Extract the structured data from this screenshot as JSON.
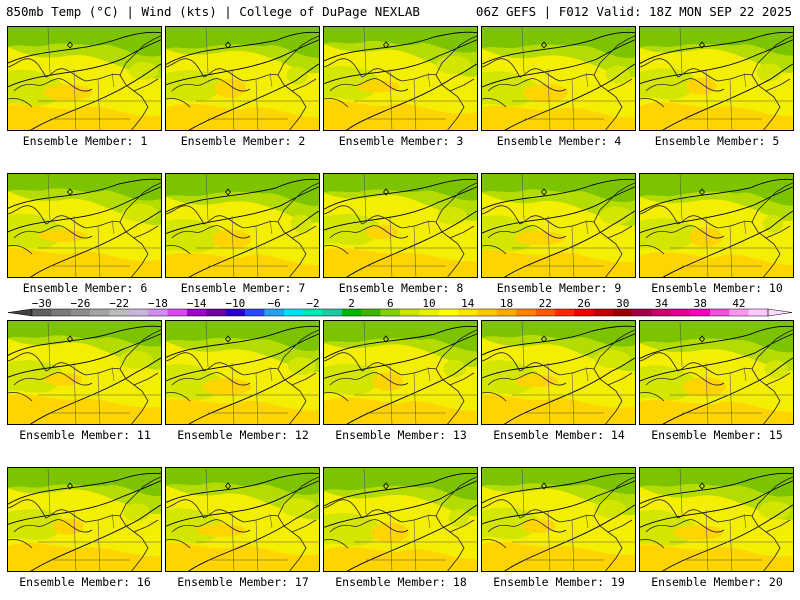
{
  "header": {
    "left": "850mb Temp (°C) | Wind (kts) | College of DuPage NEXLAB",
    "right": "06Z GEFS | F012 Valid: 18Z MON SEP 22 2025"
  },
  "members": [
    {
      "label": "Ensemble Member: 1"
    },
    {
      "label": "Ensemble Member: 2"
    },
    {
      "label": "Ensemble Member: 3"
    },
    {
      "label": "Ensemble Member: 4"
    },
    {
      "label": "Ensemble Member: 5"
    },
    {
      "label": "Ensemble Member: 6"
    },
    {
      "label": "Ensemble Member: 7"
    },
    {
      "label": "Ensemble Member: 8"
    },
    {
      "label": "Ensemble Member: 9"
    },
    {
      "label": "Ensemble Member: 10"
    },
    {
      "label": "Ensemble Member: 11"
    },
    {
      "label": "Ensemble Member: 12"
    },
    {
      "label": "Ensemble Member: 13"
    },
    {
      "label": "Ensemble Member: 14"
    },
    {
      "label": "Ensemble Member: 15"
    },
    {
      "label": "Ensemble Member: 16"
    },
    {
      "label": "Ensemble Member: 17"
    },
    {
      "label": "Ensemble Member: 18"
    },
    {
      "label": "Ensemble Member: 19"
    },
    {
      "label": "Ensemble Member: 20"
    }
  ],
  "colorbar": {
    "labels": [
      "−30",
      "−26",
      "−22",
      "−18",
      "−14",
      "−10",
      "−6",
      "−2",
      "2",
      "6",
      "10",
      "14",
      "18",
      "22",
      "26",
      "30",
      "34",
      "38",
      "42"
    ],
    "colors": [
      "#606060",
      "#787878",
      "#8c8c8c",
      "#a4a4a4",
      "#bcbcbc",
      "#c8b4dc",
      "#d28cf0",
      "#dc46f0",
      "#a000c8",
      "#6e00a0",
      "#2800c8",
      "#2848f0",
      "#28a0f0",
      "#00dcf0",
      "#00e6b4",
      "#1ec8a0",
      "#00b400",
      "#3cb400",
      "#82d200",
      "#c8e600",
      "#e6f000",
      "#ffff00",
      "#ffe600",
      "#ffc800",
      "#ffaa00",
      "#ff8200",
      "#ff5a00",
      "#ff2800",
      "#e60000",
      "#be0000",
      "#960000",
      "#a00046",
      "#c8006e",
      "#dc0096",
      "#f000be",
      "#f050dc",
      "#ff96f0",
      "#ffc8ff"
    ],
    "arrow_colors": [
      "#404040",
      "#ffdcff"
    ]
  }
}
